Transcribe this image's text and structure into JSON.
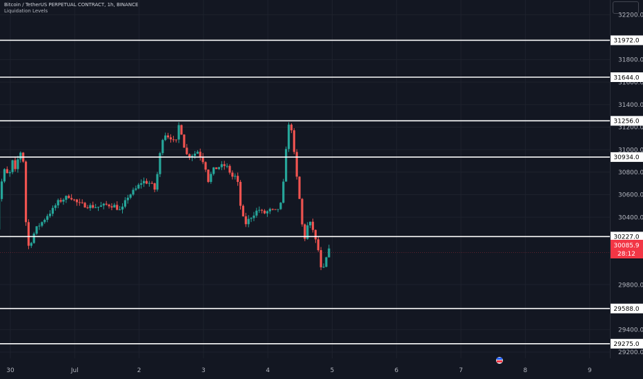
{
  "header": {
    "symbol": "Bitcoin / TetherUS PERPETUAL CONTRACT, 1h, BINANCE",
    "indicator": "Liquidation Levels"
  },
  "colors": {
    "background": "#131722",
    "up": "#26a69a",
    "down": "#ef5350",
    "level_line": "#ffffff",
    "current_price": "#f23645",
    "axis_text": "#b2b5be"
  },
  "chart_data": {
    "type": "candlestick",
    "symbol": "BTCUSDT.P",
    "interval": "1h",
    "y_axis": {
      "ylim": [
        29145,
        32330
      ],
      "ticks": [
        32200,
        31800,
        31600,
        31400,
        31200,
        31000,
        30800,
        30600,
        30400,
        29800,
        29400,
        29200
      ],
      "tick_labels": [
        "32200.0",
        "31800.0",
        "31600.0",
        "31400.0",
        "31200.0",
        "31000.0",
        "30800.0",
        "30600.0",
        "30400.0",
        "29800.0",
        "29400.0",
        "29200.0"
      ]
    },
    "x_axis": {
      "tick_labels": [
        "30",
        "Jul",
        "2",
        "3",
        "4",
        "5",
        "6",
        "7",
        "8",
        "9"
      ],
      "tick_days": [
        0,
        1,
        2,
        3,
        4,
        5,
        6,
        7,
        8,
        9
      ]
    },
    "levels": [
      31972.0,
      31644.0,
      31256.0,
      30934.0,
      30227.0,
      29588.0,
      29275.0
    ],
    "level_labels": [
      "31972.0",
      "31644.0",
      "31256.0",
      "30934.0",
      "30227.0",
      "29588.0",
      "29275.0"
    ],
    "current_price": 30085.9,
    "current_price_label": "30085.9",
    "countdown": "28:12",
    "anchors": [
      [
        -0.3,
        30480
      ],
      [
        -0.22,
        30280
      ],
      [
        -0.17,
        30600
      ],
      [
        -0.1,
        30820
      ],
      [
        -0.02,
        30760
      ],
      [
        0.03,
        30900
      ],
      [
        0.08,
        30800
      ],
      [
        0.13,
        30950
      ],
      [
        0.18,
        31000
      ],
      [
        0.2,
        30900
      ],
      [
        0.26,
        30120
      ],
      [
        0.32,
        30180
      ],
      [
        0.39,
        30290
      ],
      [
        0.45,
        30330
      ],
      [
        0.5,
        30360
      ],
      [
        0.58,
        30420
      ],
      [
        0.65,
        30460
      ],
      [
        0.73,
        30530
      ],
      [
        0.82,
        30560
      ],
      [
        0.92,
        30590
      ],
      [
        1.05,
        30520
      ],
      [
        1.2,
        30500
      ],
      [
        1.35,
        30490
      ],
      [
        1.5,
        30510
      ],
      [
        1.62,
        30500
      ],
      [
        1.72,
        30450
      ],
      [
        1.82,
        30580
      ],
      [
        1.95,
        30650
      ],
      [
        2.05,
        30720
      ],
      [
        2.18,
        30700
      ],
      [
        2.25,
        30640
      ],
      [
        2.33,
        30980
      ],
      [
        2.38,
        31150
      ],
      [
        2.45,
        31120
      ],
      [
        2.52,
        31100
      ],
      [
        2.56,
        31020
      ],
      [
        2.63,
        31260
      ],
      [
        2.68,
        31070
      ],
      [
        2.75,
        30940
      ],
      [
        2.85,
        30960
      ],
      [
        2.92,
        30990
      ],
      [
        2.97,
        30920
      ],
      [
        3.02,
        30880
      ],
      [
        3.07,
        30720
      ],
      [
        3.15,
        30820
      ],
      [
        3.25,
        30850
      ],
      [
        3.35,
        30860
      ],
      [
        3.45,
        30760
      ],
      [
        3.52,
        30760
      ],
      [
        3.58,
        30480
      ],
      [
        3.64,
        30330
      ],
      [
        3.72,
        30390
      ],
      [
        3.8,
        30440
      ],
      [
        3.86,
        30470
      ],
      [
        3.93,
        30430
      ],
      [
        4.03,
        30460
      ],
      [
        4.13,
        30450
      ],
      [
        4.22,
        30530
      ],
      [
        4.3,
        31150
      ],
      [
        4.35,
        31270
      ],
      [
        4.38,
        31120
      ],
      [
        4.43,
        30840
      ],
      [
        4.5,
        30520
      ],
      [
        4.56,
        30180
      ],
      [
        4.62,
        30330
      ],
      [
        4.68,
        30350
      ],
      [
        4.72,
        30230
      ],
      [
        4.78,
        30120
      ],
      [
        4.84,
        29880
      ],
      [
        4.9,
        30020
      ],
      [
        4.96,
        30120
      ]
    ]
  }
}
